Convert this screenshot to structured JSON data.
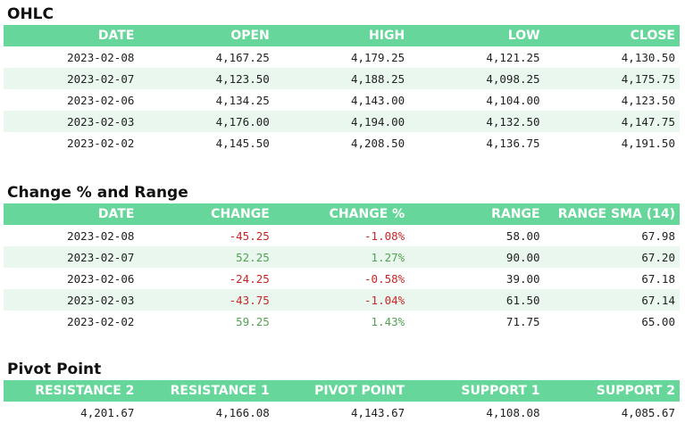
{
  "ohlc": {
    "title": "OHLC",
    "headers": [
      "DATE",
      "OPEN",
      "HIGH",
      "LOW",
      "CLOSE"
    ],
    "rows": [
      [
        "2023-02-08",
        "4,167.25",
        "4,179.25",
        "4,121.25",
        "4,130.50"
      ],
      [
        "2023-02-07",
        "4,123.50",
        "4,188.25",
        "4,098.25",
        "4,175.75"
      ],
      [
        "2023-02-06",
        "4,134.25",
        "4,143.00",
        "4,104.00",
        "4,123.50"
      ],
      [
        "2023-02-03",
        "4,176.00",
        "4,194.00",
        "4,132.50",
        "4,147.75"
      ],
      [
        "2023-02-02",
        "4,145.50",
        "4,208.50",
        "4,136.75",
        "4,191.50"
      ]
    ]
  },
  "change": {
    "title": "Change % and Range",
    "headers": [
      "DATE",
      "CHANGE",
      "CHANGE %",
      "RANGE",
      "RANGE SMA (14)"
    ],
    "rows": [
      [
        "2023-02-08",
        "-45.25",
        "-1.08%",
        "58.00",
        "67.98"
      ],
      [
        "2023-02-07",
        "52.25",
        "1.27%",
        "90.00",
        "67.20"
      ],
      [
        "2023-02-06",
        "-24.25",
        "-0.58%",
        "39.00",
        "67.18"
      ],
      [
        "2023-02-03",
        "-43.75",
        "-1.04%",
        "61.50",
        "67.14"
      ],
      [
        "2023-02-02",
        "59.25",
        "1.43%",
        "71.75",
        "65.00"
      ]
    ]
  },
  "pivot": {
    "title": "Pivot Point",
    "headers": [
      "RESISTANCE 2",
      "RESISTANCE 1",
      "PIVOT POINT",
      "SUPPORT 1",
      "SUPPORT 2"
    ],
    "row": [
      "4,201.67",
      "4,166.08",
      "4,143.67",
      "4,108.08",
      "4,085.67"
    ]
  },
  "colors": {
    "header_bg": "#66d69a",
    "row_stripe": "#eaf7ef",
    "negative": "#c62828",
    "positive": "#52a352"
  }
}
